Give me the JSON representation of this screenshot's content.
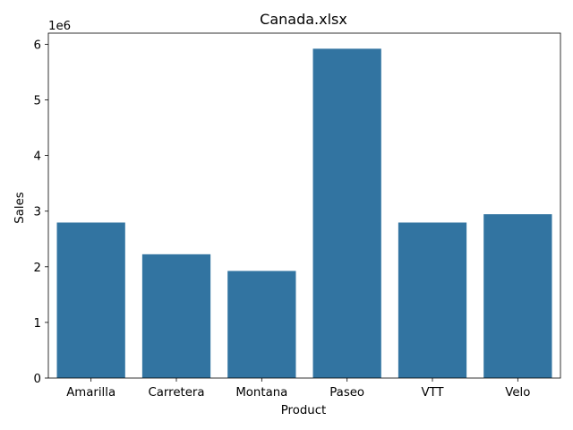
{
  "chart_data": {
    "type": "bar",
    "title": "Canada.xlsx",
    "xlabel": "Product",
    "ylabel": "Sales",
    "y_multiplier_label": "1e6",
    "categories": [
      "Amarilla",
      "Carretera",
      "Montana",
      "Paseo",
      "VTT",
      "Velo"
    ],
    "values": [
      2795000,
      2225000,
      1925000,
      5920000,
      2795000,
      2945000
    ],
    "ylim": [
      0,
      6200000
    ],
    "yticks": [
      0,
      1000000,
      2000000,
      3000000,
      4000000,
      5000000,
      6000000
    ],
    "ytick_labels": [
      "0",
      "1",
      "2",
      "3",
      "4",
      "5",
      "6"
    ],
    "grid": false,
    "bar_color": "#3274a1"
  }
}
